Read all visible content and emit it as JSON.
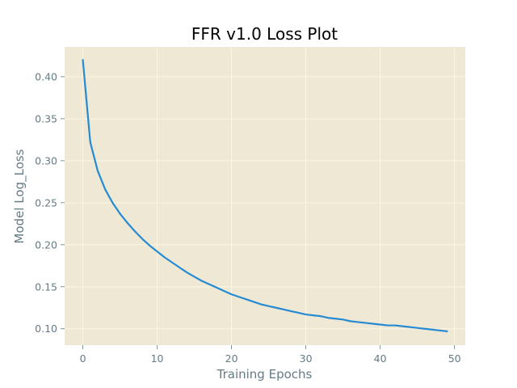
{
  "chart_data": {
    "type": "line",
    "title": "FFR v1.0 Loss Plot",
    "xlabel": "Training Epochs",
    "ylabel": "Model Log_Loss",
    "xlim": [
      -2.45,
      51.45
    ],
    "ylim": [
      0.0805,
      0.4355
    ],
    "xticks": [
      0,
      10,
      20,
      30,
      40,
      50
    ],
    "xtick_labels": [
      "0",
      "10",
      "20",
      "30",
      "40",
      "50"
    ],
    "yticks": [
      0.1,
      0.15,
      0.2,
      0.25,
      0.3,
      0.35,
      0.4
    ],
    "ytick_labels": [
      "0.10",
      "0.15",
      "0.20",
      "0.25",
      "0.30",
      "0.35",
      "0.40"
    ],
    "grid": true,
    "legend": "none",
    "background_color": "#eee8d5",
    "grid_color": "#fdf6e3",
    "line_color": "#268bd2",
    "text_color": "#657b83",
    "series": [
      {
        "x": [
          0,
          1,
          2,
          3,
          4,
          5,
          6,
          7,
          8,
          9,
          10,
          11,
          12,
          13,
          14,
          15,
          16,
          17,
          18,
          19,
          20,
          21,
          22,
          23,
          24,
          25,
          26,
          27,
          28,
          29,
          30,
          31,
          32,
          33,
          34,
          35,
          36,
          37,
          38,
          39,
          40,
          41,
          42,
          43,
          44,
          45,
          46,
          47,
          48,
          49
        ],
        "values": [
          0.42,
          0.322,
          0.288,
          0.266,
          0.25,
          0.237,
          0.226,
          0.216,
          0.207,
          0.199,
          0.192,
          0.185,
          0.179,
          0.173,
          0.167,
          0.162,
          0.157,
          0.153,
          0.149,
          0.145,
          0.141,
          0.138,
          0.135,
          0.132,
          0.129,
          0.127,
          0.125,
          0.123,
          0.121,
          0.119,
          0.117,
          0.116,
          0.115,
          0.113,
          0.112,
          0.111,
          0.109,
          0.108,
          0.107,
          0.106,
          0.105,
          0.104,
          0.104,
          0.103,
          0.102,
          0.101,
          0.1,
          0.099,
          0.098,
          0.097
        ]
      }
    ]
  }
}
